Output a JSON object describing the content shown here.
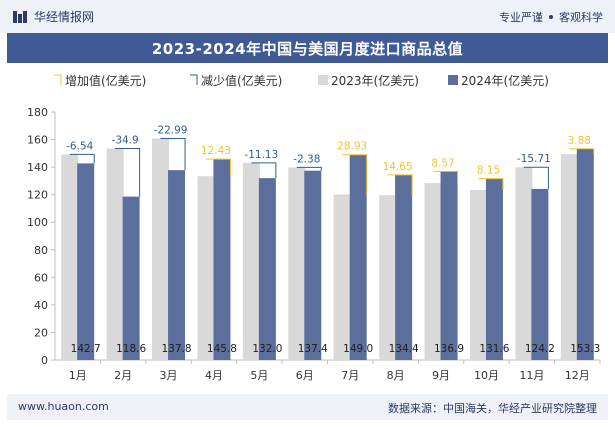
{
  "header": {
    "brand": "华经情报网",
    "slogan_left": "专业严谨",
    "slogan_right": "客观科学"
  },
  "footer": {
    "website": "www.huaon.com",
    "source": "数据来源：中国海关，华经产业研究院整理"
  },
  "colors": {
    "title_bar": "#3f5a94",
    "bar_2023": "#d9d9d9",
    "bar_2024": "#5b6e9c",
    "increase": "#f2c230",
    "decrease": "#2e5f8f"
  },
  "chart_data": {
    "type": "bar",
    "title": "2023-2024年中国与美国月度进口商品总值",
    "categories": [
      "1月",
      "2月",
      "3月",
      "4月",
      "5月",
      "6月",
      "7月",
      "8月",
      "9月",
      "10月",
      "11月",
      "12月"
    ],
    "series": [
      {
        "name": "2023年(亿美元)",
        "values": [
          149.2,
          153.5,
          160.8,
          133.4,
          143.1,
          139.8,
          120.1,
          119.7,
          128.4,
          123.4,
          139.9,
          149.4
        ]
      },
      {
        "name": "2024年(亿美元)",
        "values": [
          142.7,
          118.6,
          137.8,
          145.8,
          132.0,
          137.4,
          149.0,
          134.4,
          136.9,
          131.6,
          124.2,
          153.3
        ]
      }
    ],
    "changes": [
      "-6.54",
      "-34.9",
      "-22.99",
      "12.43",
      "-11.13",
      "-2.38",
      "28.93",
      "14.65",
      "8.57",
      "8.15",
      "-15.71",
      "3.88"
    ],
    "value_labels_2024": [
      "142.7",
      "118.6",
      "137.8",
      "145.8",
      "132.0",
      "137.4",
      "149.0",
      "134.4",
      "136.9",
      "131.6",
      "124.2",
      "153.3"
    ],
    "legend": [
      "增加值(亿美元)",
      "减少值(亿美元)",
      "2023年(亿美元)",
      "2024年(亿美元)"
    ],
    "yticks": [
      "0",
      "20",
      "40",
      "60",
      "80",
      "100",
      "120",
      "140",
      "160",
      "180"
    ],
    "ylim": [
      0,
      180
    ],
    "grid": false,
    "legend_position": "top"
  }
}
